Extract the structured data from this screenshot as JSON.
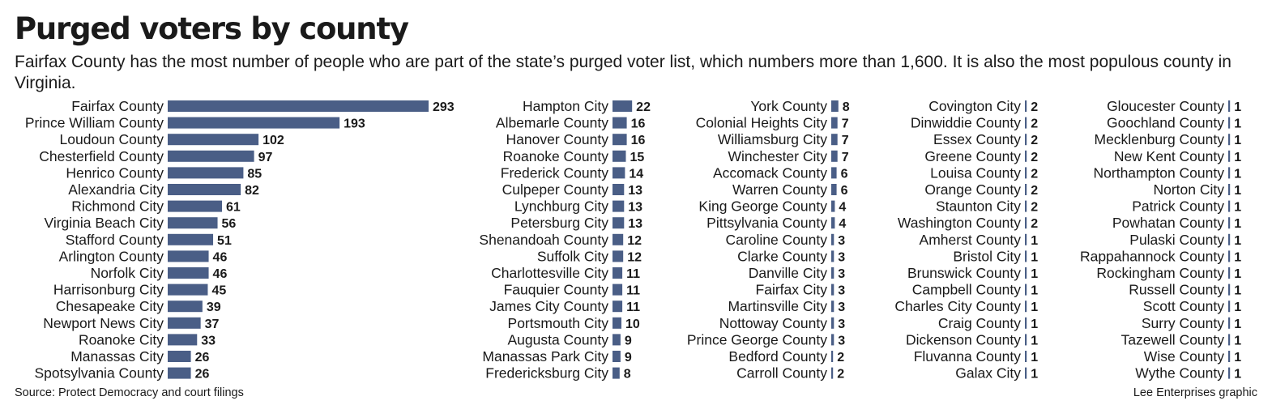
{
  "title": "Purged voters by county",
  "subtitle": "Fairfax County has the most number of people who are part of the state’s purged voter list, which numbers more than 1,600. It is also the most populous county in Virginia.",
  "source": "Source: Protect Democracy and court filings",
  "credit": "Lee Enterprises graphic",
  "colors": {
    "bar": "#4a5e86"
  },
  "chart_data": {
    "type": "bar",
    "orientation": "horizontal",
    "xlim": [
      0,
      293
    ],
    "panels": [
      {
        "categories": [
          "Fairfax County",
          "Prince William County",
          "Loudoun County",
          "Chesterfield County",
          "Henrico County",
          "Alexandria City",
          "Richmond City",
          "Virginia Beach City",
          "Stafford County",
          "Arlington County",
          "Norfolk City",
          "Harrisonburg City",
          "Chesapeake City",
          "Newport News City",
          "Roanoke City",
          "Manassas City",
          "Spotsylvania County"
        ],
        "values": [
          293,
          193,
          102,
          97,
          85,
          82,
          61,
          56,
          51,
          46,
          46,
          45,
          39,
          37,
          33,
          26,
          26
        ]
      },
      {
        "categories": [
          "Hampton City",
          "Albemarle County",
          "Hanover County",
          "Roanoke County",
          "Frederick County",
          "Culpeper County",
          "Lynchburg City",
          "Petersburg City",
          "Shenandoah County",
          "Suffolk City",
          "Charlottesville City",
          "Fauquier County",
          "James City County",
          "Portsmouth City",
          "Augusta County",
          "Manassas Park City",
          "Fredericksburg City"
        ],
        "values": [
          22,
          16,
          16,
          15,
          14,
          13,
          13,
          13,
          12,
          12,
          11,
          11,
          11,
          10,
          9,
          9,
          8
        ]
      },
      {
        "categories": [
          "York County",
          "Colonial Heights City",
          "Williamsburg City",
          "Winchester City",
          "Accomack County",
          "Warren County",
          "King George County",
          "Pittsylvania County",
          "Caroline County",
          "Clarke County",
          "Danville City",
          "Fairfax City",
          "Martinsville City",
          "Nottoway County",
          "Prince George County",
          "Bedford County",
          "Carroll County"
        ],
        "values": [
          8,
          7,
          7,
          7,
          6,
          6,
          4,
          4,
          3,
          3,
          3,
          3,
          3,
          3,
          3,
          2,
          2
        ]
      },
      {
        "categories": [
          "Covington City",
          "Dinwiddie County",
          "Essex County",
          "Greene County",
          "Louisa County",
          "Orange County",
          "Staunton City",
          "Washington County",
          "Amherst County",
          "Bristol City",
          "Brunswick County",
          "Campbell County",
          "Charles City County",
          "Craig County",
          "Dickenson County",
          "Fluvanna County",
          "Galax City"
        ],
        "values": [
          2,
          2,
          2,
          2,
          2,
          2,
          2,
          2,
          1,
          1,
          1,
          1,
          1,
          1,
          1,
          1,
          1
        ]
      },
      {
        "categories": [
          "Gloucester County",
          "Goochland County",
          "Mecklenburg County",
          "New Kent County",
          "Northampton County",
          "Norton City",
          "Patrick County",
          "Powhatan County",
          "Pulaski County",
          "Rappahannock County",
          "Rockingham County",
          "Russell County",
          "Scott County",
          "Surry County",
          "Tazewell County",
          "Wise County",
          "Wythe County"
        ],
        "values": [
          1,
          1,
          1,
          1,
          1,
          1,
          1,
          1,
          1,
          1,
          1,
          1,
          1,
          1,
          1,
          1,
          1
        ]
      }
    ]
  }
}
